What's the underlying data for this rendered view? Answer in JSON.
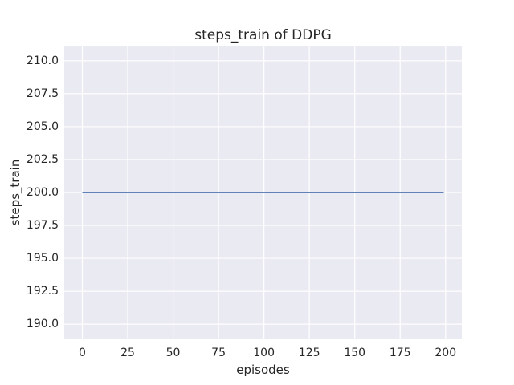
{
  "chart_data": {
    "type": "line",
    "title": "steps_train of DDPG",
    "xlabel": "episodes",
    "ylabel": "steps_train",
    "x_ticks": [
      0,
      25,
      50,
      75,
      100,
      125,
      150,
      175,
      200
    ],
    "x_tick_labels": [
      "0",
      "25",
      "50",
      "75",
      "100",
      "125",
      "150",
      "175",
      "200"
    ],
    "y_ticks": [
      190.0,
      192.5,
      195.0,
      197.5,
      200.0,
      202.5,
      205.0,
      207.5,
      210.0
    ],
    "y_tick_labels": [
      "190.0",
      "192.5",
      "195.0",
      "197.5",
      "200.0",
      "202.5",
      "205.0",
      "207.5",
      "210.0"
    ],
    "xlim": [
      -9.95,
      208.95
    ],
    "ylim": [
      188.85,
      211.15
    ],
    "grid": true,
    "legend": "none",
    "plot_background_color": "#eaeaf2",
    "grid_color": "#ffffff",
    "text_color": "#262626",
    "series": [
      {
        "name": "steps_train",
        "x": [
          0,
          199
        ],
        "y": [
          200,
          200
        ],
        "color": "#4c72b0",
        "linewidth": 1.8
      }
    ]
  }
}
